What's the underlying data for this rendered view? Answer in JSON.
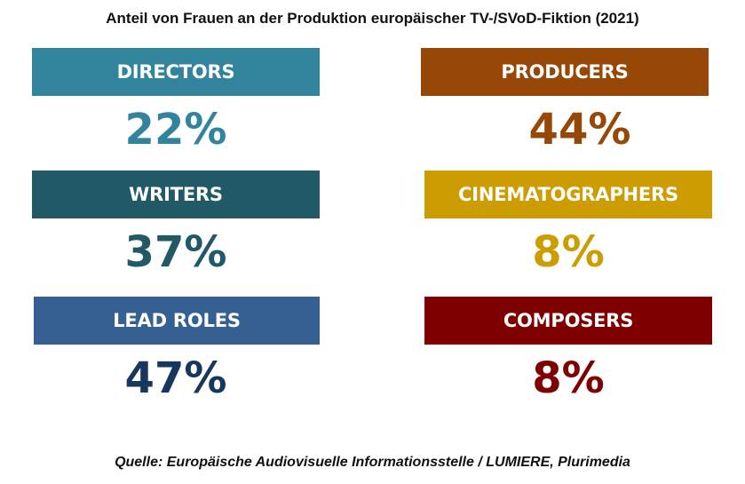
{
  "chart_data": {
    "type": "table",
    "title": "Anteil von Frauen an der Produktion europäischer TV-/SVoD-Fiktion (2021)",
    "unit": "%",
    "items": [
      {
        "label": "DIRECTORS",
        "value": 22,
        "display": "22%",
        "color": "#31849b"
      },
      {
        "label": "PRODUCERS",
        "value": 44,
        "display": "44%",
        "color": "#974706"
      },
      {
        "label": "WRITERS",
        "value": 37,
        "display": "37%",
        "color": "#215967"
      },
      {
        "label": "CINEMATOGRAPHERS",
        "value": 8,
        "display": "8%",
        "color": "#cc9c00"
      },
      {
        "label": "LEAD ROLES",
        "value": 47,
        "display": "47%",
        "color": "#366092",
        "value_color": "#17375e"
      },
      {
        "label": "COMPOSERS",
        "value": 8,
        "display": "8%",
        "color": "#7f0000"
      }
    ],
    "source": "Quelle: Europäische Audiovisuelle Informationsstelle / LUMIERE, Plurimedia"
  }
}
